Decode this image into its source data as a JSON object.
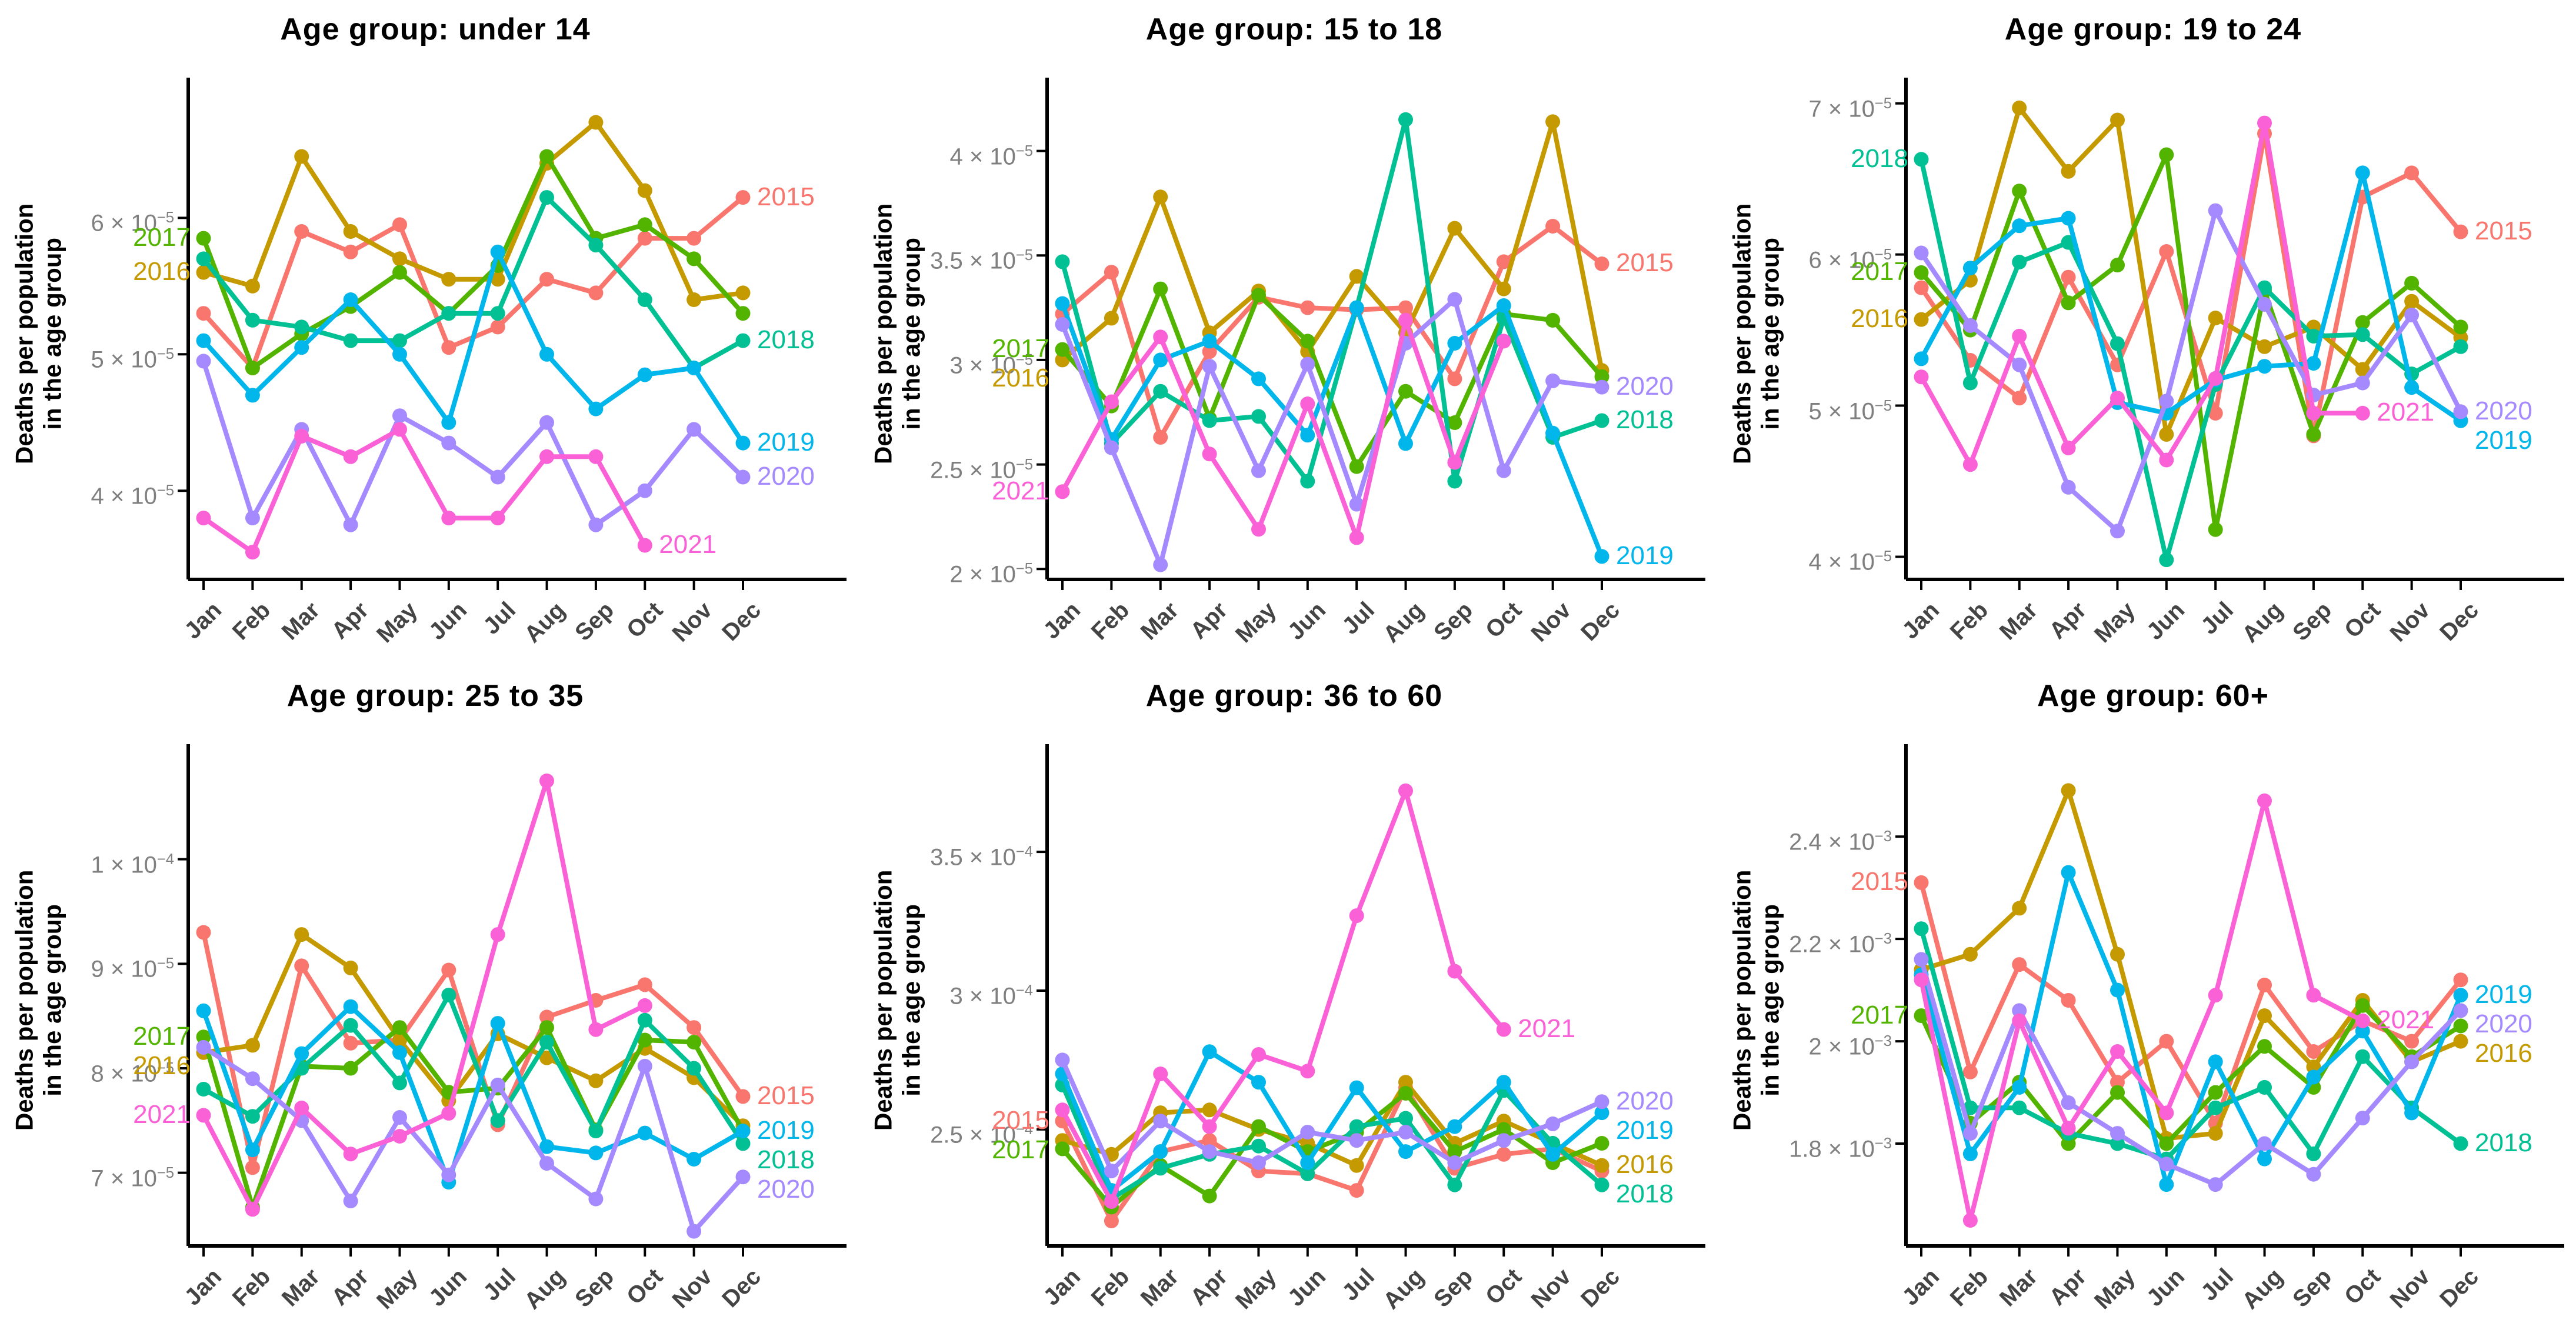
{
  "page": {
    "background": "#ffffff"
  },
  "ylabel_lines": [
    "Deaths per population",
    "in the age group"
  ],
  "months": [
    "Jan",
    "Feb",
    "Mar",
    "Apr",
    "May",
    "Jun",
    "Jul",
    "Aug",
    "Sep",
    "Oct",
    "Nov",
    "Dec"
  ],
  "palette": {
    "2015": "#F8766D",
    "2016": "#C49A00",
    "2017": "#53B400",
    "2018": "#00C094",
    "2019": "#00B6EB",
    "2020": "#A58AFF",
    "2021": "#FB61D7"
  },
  "style": {
    "axis_color": "#000000",
    "y_tick_text_color": "#7f7f7f",
    "x_tick_text_color": "#444444",
    "title_color": "#000000"
  },
  "chart_data": [
    {
      "type": "line",
      "title": "Age group: under 14",
      "xlabel": "",
      "ylabel": "Deaths per population in the age group",
      "values_unit": "1e-5",
      "ylim": [
        3.35,
        6.95
      ],
      "grid": false,
      "legend_position": "line-ends",
      "yticks": [
        {
          "value": 4,
          "mantissa": "4",
          "exponent": "−5"
        },
        {
          "value": 5,
          "mantissa": "5",
          "exponent": "−5"
        },
        {
          "value": 6,
          "mantissa": "6",
          "exponent": "−5"
        }
      ],
      "series": [
        {
          "name": "2015",
          "label_side": "end",
          "values": [
            5.3,
            4.9,
            5.9,
            5.75,
            5.95,
            5.05,
            5.2,
            5.55,
            5.45,
            5.85,
            5.85,
            6.15
          ]
        },
        {
          "name": "2016",
          "label_side": "start",
          "values": [
            5.6,
            5.5,
            6.45,
            5.9,
            5.7,
            5.55,
            5.55,
            6.4,
            6.7,
            6.2,
            5.4,
            5.45
          ]
        },
        {
          "name": "2017",
          "label_side": "start",
          "values": [
            5.85,
            4.9,
            5.15,
            5.35,
            5.6,
            5.3,
            5.65,
            6.45,
            5.85,
            5.95,
            5.7,
            5.3
          ]
        },
        {
          "name": "2018",
          "label_side": "end",
          "values": [
            5.7,
            5.25,
            5.2,
            5.1,
            5.1,
            5.3,
            5.3,
            6.15,
            5.8,
            5.4,
            4.9,
            5.1
          ]
        },
        {
          "name": "2019",
          "label_side": "end",
          "values": [
            5.1,
            4.7,
            5.05,
            5.4,
            5.0,
            4.5,
            5.75,
            5.0,
            4.6,
            4.85,
            4.9,
            4.35
          ]
        },
        {
          "name": "2020",
          "label_side": "end",
          "values": [
            4.95,
            3.8,
            4.45,
            3.75,
            4.55,
            4.35,
            4.1,
            4.5,
            3.75,
            4.0,
            4.45,
            4.1
          ]
        },
        {
          "name": "2021",
          "label_side": "end",
          "values": [
            3.8,
            3.55,
            4.4,
            4.25,
            4.45,
            3.8,
            3.8,
            4.25,
            4.25,
            3.6,
            null,
            null
          ]
        }
      ]
    },
    {
      "type": "line",
      "title": "Age group: 15 to 18",
      "xlabel": "",
      "ylabel": "Deaths per population in the age group",
      "values_unit": "1e-5",
      "ylim": [
        1.95,
        4.3
      ],
      "grid": false,
      "legend_position": "line-ends",
      "yticks": [
        {
          "value": 2,
          "mantissa": "2",
          "exponent": "−5"
        },
        {
          "value": 2.5,
          "mantissa": "2.5",
          "exponent": "−5"
        },
        {
          "value": 3,
          "mantissa": "3",
          "exponent": "−5"
        },
        {
          "value": 3.5,
          "mantissa": "3.5",
          "exponent": "−5"
        },
        {
          "value": 4,
          "mantissa": "4",
          "exponent": "−5"
        }
      ],
      "series": [
        {
          "name": "2015",
          "label_side": "end",
          "values": [
            3.22,
            3.42,
            2.63,
            3.04,
            3.3,
            3.25,
            3.24,
            3.25,
            2.91,
            3.47,
            3.64,
            3.46
          ]
        },
        {
          "name": "2016",
          "label_side": "start",
          "values": [
            3.0,
            3.2,
            3.78,
            3.13,
            3.33,
            3.04,
            3.4,
            3.13,
            3.63,
            3.34,
            4.14,
            2.95
          ]
        },
        {
          "name": "2017",
          "label_side": "start",
          "values": [
            3.05,
            2.78,
            3.34,
            2.72,
            3.31,
            3.09,
            2.49,
            2.85,
            2.7,
            3.22,
            3.19,
            2.92
          ]
        },
        {
          "name": "2018",
          "label_side": "end",
          "values": [
            3.47,
            2.6,
            2.85,
            2.71,
            2.73,
            2.42,
            3.25,
            4.15,
            2.42,
            3.2,
            2.63,
            2.71
          ]
        },
        {
          "name": "2019",
          "label_side": "end",
          "values": [
            3.27,
            2.62,
            3.0,
            3.09,
            2.91,
            2.64,
            3.25,
            2.6,
            3.08,
            3.26,
            2.65,
            2.06
          ]
        },
        {
          "name": "2020",
          "label_side": "end",
          "values": [
            3.17,
            2.58,
            2.02,
            2.97,
            2.47,
            2.98,
            2.31,
            3.08,
            3.29,
            2.47,
            2.9,
            2.87
          ]
        },
        {
          "name": "2021",
          "label_side": "start",
          "values": [
            2.37,
            2.8,
            3.11,
            2.55,
            2.19,
            2.79,
            2.15,
            3.19,
            2.51,
            3.09,
            null,
            null
          ]
        }
      ]
    },
    {
      "type": "line",
      "title": "Age group: 19 to 24",
      "xlabel": "",
      "ylabel": "Deaths per population in the age group",
      "values_unit": "1e-5",
      "ylim": [
        3.85,
        7.1
      ],
      "grid": false,
      "legend_position": "line-ends",
      "yticks": [
        {
          "value": 4,
          "mantissa": "4",
          "exponent": "−5"
        },
        {
          "value": 5,
          "mantissa": "5",
          "exponent": "−5"
        },
        {
          "value": 6,
          "mantissa": "6",
          "exponent": "−5"
        },
        {
          "value": 7,
          "mantissa": "7",
          "exponent": "−5"
        }
      ],
      "series": [
        {
          "name": "2015",
          "label_side": "end",
          "values": [
            5.78,
            5.3,
            5.05,
            5.85,
            5.27,
            6.02,
            4.95,
            6.8,
            4.8,
            6.38,
            6.54,
            6.15
          ]
        },
        {
          "name": "2016",
          "label_side": "start",
          "values": [
            5.57,
            5.83,
            6.97,
            6.55,
            6.89,
            4.81,
            5.58,
            5.39,
            5.52,
            5.24,
            5.69,
            5.45
          ]
        },
        {
          "name": "2017",
          "label_side": "start",
          "values": [
            5.88,
            5.5,
            6.42,
            5.68,
            5.93,
            6.66,
            4.18,
            5.76,
            4.81,
            5.55,
            5.81,
            5.52
          ]
        },
        {
          "name": "2018",
          "label_side": "start",
          "values": [
            6.63,
            5.15,
            5.95,
            6.08,
            5.41,
            3.98,
            5.14,
            5.78,
            5.46,
            5.47,
            5.21,
            5.39
          ]
        },
        {
          "name": "2019",
          "label_side": "end",
          "values": [
            5.31,
            5.91,
            6.19,
            6.24,
            5.02,
            4.95,
            5.17,
            5.26,
            5.28,
            6.54,
            5.12,
            4.9
          ]
        },
        {
          "name": "2020",
          "label_side": "end",
          "values": [
            6.01,
            5.53,
            5.27,
            4.46,
            4.17,
            5.03,
            6.29,
            5.67,
            5.07,
            5.15,
            5.6,
            4.96
          ]
        },
        {
          "name": "2021",
          "label_side": "end",
          "values": [
            5.19,
            4.61,
            5.46,
            4.72,
            5.05,
            4.64,
            5.18,
            6.87,
            4.95,
            4.95,
            null,
            null
          ]
        }
      ]
    },
    {
      "type": "line",
      "title": "Age group: 25 to 35",
      "xlabel": "",
      "ylabel": "Deaths per population in the age group",
      "values_unit": "1e-5",
      "ylim": [
        6.3,
        11.0
      ],
      "grid": false,
      "legend_position": "line-ends",
      "yticks": [
        {
          "value": 7,
          "mantissa": "7",
          "exponent": "−5"
        },
        {
          "value": 8,
          "mantissa": "8",
          "exponent": "−5"
        },
        {
          "value": 9,
          "mantissa": "9",
          "exponent": "−5"
        },
        {
          "value": 10,
          "mantissa": "1",
          "exponent": "−4"
        }
      ],
      "series": [
        {
          "name": "2015",
          "label_side": "end",
          "values": [
            9.3,
            7.05,
            8.98,
            8.24,
            8.27,
            8.94,
            7.46,
            8.49,
            8.65,
            8.8,
            8.39,
            7.73
          ]
        },
        {
          "name": "2016",
          "label_side": "start",
          "values": [
            8.15,
            8.22,
            9.28,
            8.96,
            8.27,
            7.69,
            8.33,
            8.1,
            7.88,
            8.19,
            7.91,
            7.45
          ]
        },
        {
          "name": "2017",
          "label_side": "start",
          "values": [
            8.3,
            6.67,
            8.02,
            8.0,
            8.39,
            7.77,
            7.81,
            8.39,
            7.41,
            8.27,
            8.25,
            7.4
          ]
        },
        {
          "name": "2018",
          "label_side": "end",
          "values": [
            7.8,
            7.54,
            8.0,
            8.41,
            7.86,
            8.7,
            7.5,
            8.25,
            7.4,
            8.46,
            8.0,
            7.28
          ]
        },
        {
          "name": "2019",
          "label_side": "end",
          "values": [
            8.55,
            7.22,
            8.14,
            8.59,
            8.15,
            6.91,
            8.43,
            7.25,
            7.19,
            7.38,
            7.13,
            7.4
          ]
        },
        {
          "name": "2020",
          "label_side": "end",
          "values": [
            8.2,
            7.9,
            7.5,
            6.73,
            7.53,
            6.98,
            7.84,
            7.09,
            6.75,
            8.02,
            6.44,
            6.96
          ]
        },
        {
          "name": "2021",
          "label_side": "start",
          "values": [
            7.55,
            6.65,
            7.62,
            7.18,
            7.35,
            7.57,
            9.28,
            10.75,
            8.37,
            8.6,
            null,
            null
          ]
        }
      ]
    },
    {
      "type": "line",
      "title": "Age group: 36 to 60",
      "xlabel": "",
      "ylabel": "Deaths per population in the age group",
      "values_unit": "1e-4",
      "ylim": [
        2.08,
        3.85
      ],
      "grid": false,
      "legend_position": "line-ends",
      "yticks": [
        {
          "value": 2.5,
          "mantissa": "2.5",
          "exponent": "−4"
        },
        {
          "value": 3,
          "mantissa": "3",
          "exponent": "−4"
        },
        {
          "value": 3.5,
          "mantissa": "3.5",
          "exponent": "−4"
        }
      ],
      "series": [
        {
          "name": "2015",
          "label_side": "start",
          "values": [
            2.53,
            2.17,
            2.42,
            2.46,
            2.35,
            2.34,
            2.28,
            2.65,
            2.36,
            2.41,
            2.43,
            2.35
          ]
        },
        {
          "name": "2016",
          "label_side": "end",
          "values": [
            2.46,
            2.41,
            2.56,
            2.57,
            2.5,
            2.45,
            2.37,
            2.67,
            2.45,
            2.53,
            2.45,
            2.37
          ]
        },
        {
          "name": "2017",
          "label_side": "start",
          "values": [
            2.43,
            2.22,
            2.37,
            2.26,
            2.51,
            2.42,
            2.49,
            2.63,
            2.42,
            2.5,
            2.38,
            2.45
          ]
        },
        {
          "name": "2018",
          "label_side": "end",
          "values": [
            2.66,
            2.25,
            2.36,
            2.41,
            2.44,
            2.34,
            2.51,
            2.54,
            2.3,
            2.64,
            2.45,
            2.3
          ]
        },
        {
          "name": "2019",
          "label_side": "end",
          "values": [
            2.7,
            2.28,
            2.42,
            2.78,
            2.67,
            2.38,
            2.65,
            2.42,
            2.51,
            2.67,
            2.41,
            2.56
          ]
        },
        {
          "name": "2020",
          "label_side": "end",
          "values": [
            2.75,
            2.35,
            2.53,
            2.42,
            2.38,
            2.49,
            2.46,
            2.49,
            2.38,
            2.46,
            2.52,
            2.6
          ]
        },
        {
          "name": "2021",
          "label_side": "end",
          "values": [
            2.57,
            2.24,
            2.7,
            2.51,
            2.77,
            2.71,
            3.27,
            3.72,
            3.07,
            2.86,
            null,
            null
          ]
        }
      ]
    },
    {
      "type": "line",
      "title": "Age group: 60+",
      "xlabel": "",
      "ylabel": "Deaths per population in the age group",
      "values_unit": "1e-3",
      "ylim": [
        1.6,
        2.56
      ],
      "grid": false,
      "legend_position": "line-ends",
      "yticks": [
        {
          "value": 1.8,
          "mantissa": "1.8",
          "exponent": "−3"
        },
        {
          "value": 2,
          "mantissa": "2",
          "exponent": "−3"
        },
        {
          "value": 2.2,
          "mantissa": "2.2",
          "exponent": "−3"
        },
        {
          "value": 2.4,
          "mantissa": "2.4",
          "exponent": "−3"
        }
      ],
      "series": [
        {
          "name": "2015",
          "label_side": "start",
          "values": [
            2.31,
            1.94,
            2.15,
            2.08,
            1.92,
            2.0,
            1.84,
            2.11,
            1.98,
            2.04,
            2.0,
            2.12
          ]
        },
        {
          "name": "2016",
          "label_side": "end",
          "values": [
            2.14,
            2.17,
            2.26,
            2.49,
            2.17,
            1.81,
            1.82,
            2.05,
            1.95,
            2.08,
            1.96,
            2.0
          ]
        },
        {
          "name": "2017",
          "label_side": "start",
          "values": [
            2.05,
            1.84,
            1.92,
            1.8,
            1.9,
            1.8,
            1.9,
            1.99,
            1.91,
            2.07,
            1.97,
            2.03
          ]
        },
        {
          "name": "2018",
          "label_side": "end",
          "values": [
            2.22,
            1.87,
            1.87,
            1.82,
            1.8,
            1.77,
            1.87,
            1.91,
            1.78,
            1.97,
            1.87,
            1.8
          ]
        },
        {
          "name": "2019",
          "label_side": "end",
          "values": [
            2.13,
            1.78,
            1.91,
            2.33,
            2.1,
            1.72,
            1.96,
            1.77,
            1.93,
            2.02,
            1.86,
            2.09
          ]
        },
        {
          "name": "2020",
          "label_side": "end",
          "values": [
            2.16,
            1.82,
            2.06,
            1.88,
            1.82,
            1.76,
            1.72,
            1.8,
            1.74,
            1.85,
            1.96,
            2.06
          ]
        },
        {
          "name": "2021",
          "label_side": "end",
          "values": [
            2.12,
            1.65,
            2.04,
            1.83,
            1.98,
            1.86,
            2.09,
            2.47,
            2.09,
            2.04,
            null,
            null
          ]
        }
      ]
    }
  ]
}
